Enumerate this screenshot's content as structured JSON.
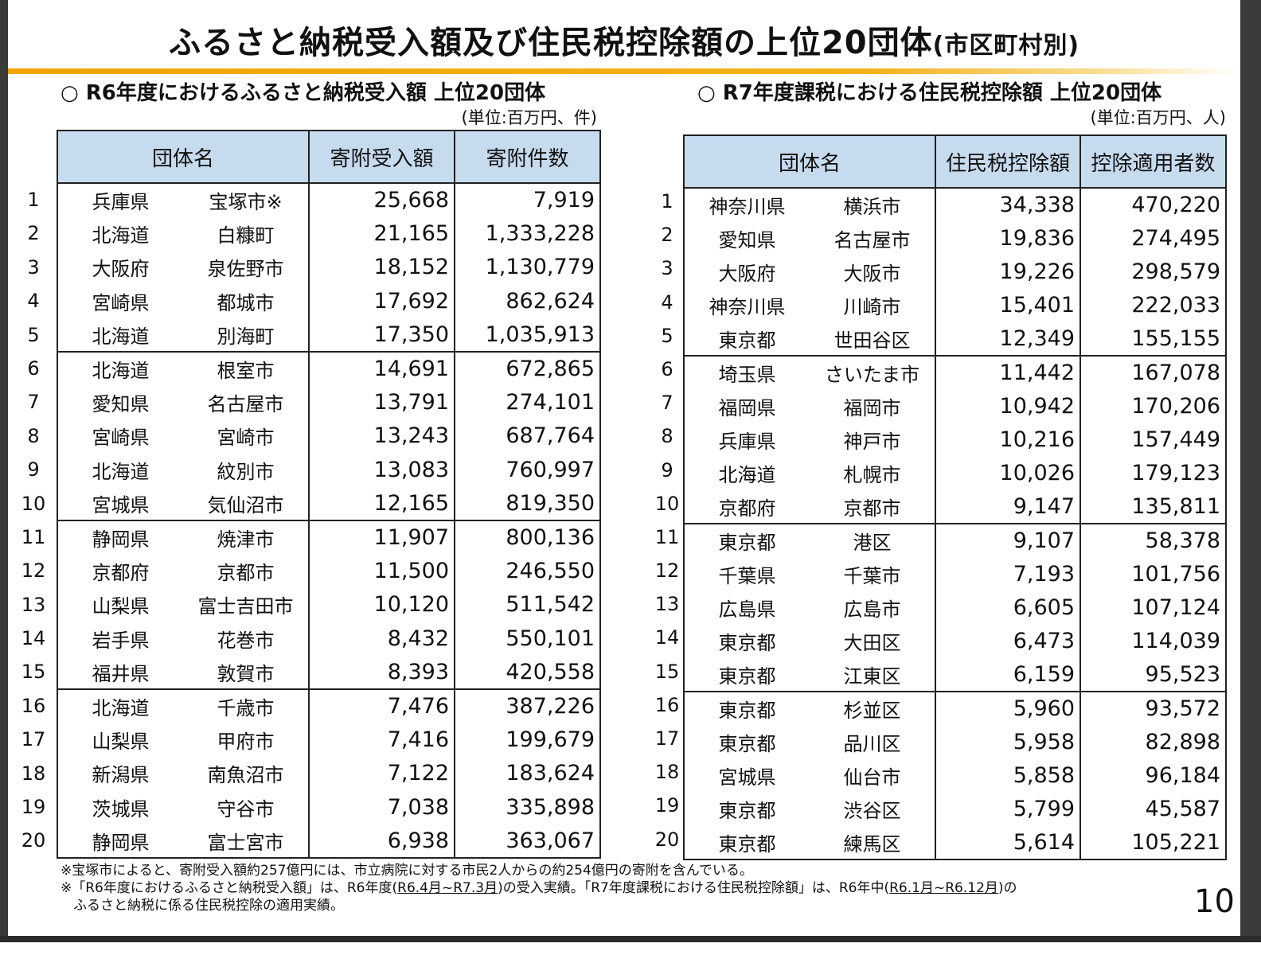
{
  "title": "ふるさと納税受入額及び住民税控除額の上位20団体",
  "title_suffix": "(市区町村別)",
  "left": {
    "heading": "○ R6年度におけるふるさと納税受入額 上位20団体",
    "unit": "(単位:百万円、件)",
    "col_name": "団体名",
    "col_a": "寄附受入額",
    "col_b": "寄附件数",
    "rows": [
      {
        "rank": "1",
        "pref": "兵庫県",
        "city": "宝塚市※",
        "a": "25,668",
        "b": "7,919"
      },
      {
        "rank": "2",
        "pref": "北海道",
        "city": "白糠町",
        "a": "21,165",
        "b": "1,333,228"
      },
      {
        "rank": "3",
        "pref": "大阪府",
        "city": "泉佐野市",
        "a": "18,152",
        "b": "1,130,779"
      },
      {
        "rank": "4",
        "pref": "宮崎県",
        "city": "都城市",
        "a": "17,692",
        "b": "862,624"
      },
      {
        "rank": "5",
        "pref": "北海道",
        "city": "別海町",
        "a": "17,350",
        "b": "1,035,913"
      },
      {
        "rank": "6",
        "pref": "北海道",
        "city": "根室市",
        "a": "14,691",
        "b": "672,865"
      },
      {
        "rank": "7",
        "pref": "愛知県",
        "city": "名古屋市",
        "a": "13,791",
        "b": "274,101"
      },
      {
        "rank": "8",
        "pref": "宮崎県",
        "city": "宮崎市",
        "a": "13,243",
        "b": "687,764"
      },
      {
        "rank": "9",
        "pref": "北海道",
        "city": "紋別市",
        "a": "13,083",
        "b": "760,997"
      },
      {
        "rank": "10",
        "pref": "宮城県",
        "city": "気仙沼市",
        "a": "12,165",
        "b": "819,350"
      },
      {
        "rank": "11",
        "pref": "静岡県",
        "city": "焼津市",
        "a": "11,907",
        "b": "800,136"
      },
      {
        "rank": "12",
        "pref": "京都府",
        "city": "京都市",
        "a": "11,500",
        "b": "246,550"
      },
      {
        "rank": "13",
        "pref": "山梨県",
        "city": "富士吉田市",
        "a": "10,120",
        "b": "511,542"
      },
      {
        "rank": "14",
        "pref": "岩手県",
        "city": "花巻市",
        "a": "8,432",
        "b": "550,101"
      },
      {
        "rank": "15",
        "pref": "福井県",
        "city": "敦賀市",
        "a": "8,393",
        "b": "420,558"
      },
      {
        "rank": "16",
        "pref": "北海道",
        "city": "千歳市",
        "a": "7,476",
        "b": "387,226"
      },
      {
        "rank": "17",
        "pref": "山梨県",
        "city": "甲府市",
        "a": "7,416",
        "b": "199,679"
      },
      {
        "rank": "18",
        "pref": "新潟県",
        "city": "南魚沼市",
        "a": "7,122",
        "b": "183,624"
      },
      {
        "rank": "19",
        "pref": "茨城県",
        "city": "守谷市",
        "a": "7,038",
        "b": "335,898"
      },
      {
        "rank": "20",
        "pref": "静岡県",
        "city": "富士宮市",
        "a": "6,938",
        "b": "363,067"
      }
    ]
  },
  "right": {
    "heading": "○ R7年度課税における住民税控除額 上位20団体",
    "unit": "(単位:百万円、人)",
    "col_name": "団体名",
    "col_a": "住民税控除額",
    "col_b": "控除適用者数",
    "rows": [
      {
        "rank": "1",
        "pref": "神奈川県",
        "city": "横浜市",
        "a": "34,338",
        "b": "470,220"
      },
      {
        "rank": "2",
        "pref": "愛知県",
        "city": "名古屋市",
        "a": "19,836",
        "b": "274,495"
      },
      {
        "rank": "3",
        "pref": "大阪府",
        "city": "大阪市",
        "a": "19,226",
        "b": "298,579"
      },
      {
        "rank": "4",
        "pref": "神奈川県",
        "city": "川崎市",
        "a": "15,401",
        "b": "222,033"
      },
      {
        "rank": "5",
        "pref": "東京都",
        "city": "世田谷区",
        "a": "12,349",
        "b": "155,155"
      },
      {
        "rank": "6",
        "pref": "埼玉県",
        "city": "さいたま市",
        "a": "11,442",
        "b": "167,078"
      },
      {
        "rank": "7",
        "pref": "福岡県",
        "city": "福岡市",
        "a": "10,942",
        "b": "170,206"
      },
      {
        "rank": "8",
        "pref": "兵庫県",
        "city": "神戸市",
        "a": "10,216",
        "b": "157,449"
      },
      {
        "rank": "9",
        "pref": "北海道",
        "city": "札幌市",
        "a": "10,026",
        "b": "179,123"
      },
      {
        "rank": "10",
        "pref": "京都府",
        "city": "京都市",
        "a": "9,147",
        "b": "135,811"
      },
      {
        "rank": "11",
        "pref": "東京都",
        "city": "港区",
        "a": "9,107",
        "b": "58,378"
      },
      {
        "rank": "12",
        "pref": "千葉県",
        "city": "千葉市",
        "a": "7,193",
        "b": "101,756"
      },
      {
        "rank": "13",
        "pref": "広島県",
        "city": "広島市",
        "a": "6,605",
        "b": "107,124"
      },
      {
        "rank": "14",
        "pref": "東京都",
        "city": "大田区",
        "a": "6,473",
        "b": "114,039"
      },
      {
        "rank": "15",
        "pref": "東京都",
        "city": "江東区",
        "a": "6,159",
        "b": "95,523"
      },
      {
        "rank": "16",
        "pref": "東京都",
        "city": "杉並区",
        "a": "5,960",
        "b": "93,572"
      },
      {
        "rank": "17",
        "pref": "東京都",
        "city": "品川区",
        "a": "5,958",
        "b": "82,898"
      },
      {
        "rank": "18",
        "pref": "宮城県",
        "city": "仙台市",
        "a": "5,858",
        "b": "96,184"
      },
      {
        "rank": "19",
        "pref": "東京都",
        "city": "渋谷区",
        "a": "5,799",
        "b": "45,587"
      },
      {
        "rank": "20",
        "pref": "東京都",
        "city": "練馬区",
        "a": "5,614",
        "b": "105,221"
      }
    ]
  },
  "notes": {
    "line1": "※宝塚市によると、寄附受入額約257億円には、市立病院に対する市民2人からの約254億円の寄附を含んでいる。",
    "line2_a": "※「R6年度におけるふるさと納税受入額」は、R6年度(",
    "line2_u1": "R6.4月~R7.3月",
    "line2_b": ")の受入実績。「R7年度課税における住民税控除額」は、R6年中(",
    "line2_u2": "R6.1月~R6.12月",
    "line2_c": ")の",
    "line3": "ふるさと納税に係る住民税控除の適用実績。"
  },
  "page_number": "10"
}
